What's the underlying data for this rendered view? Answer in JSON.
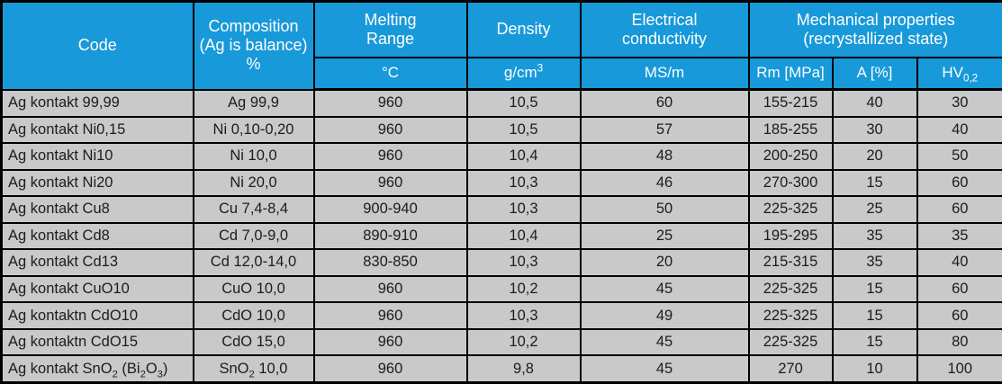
{
  "colors": {
    "header_bg": "#1899d9",
    "header_text": "#ffffff",
    "row_bg": "#c9c9c9",
    "body_text": "#1c1c1c",
    "border": "#000000"
  },
  "table": {
    "header": {
      "code": "Code",
      "composition": "Composition<br>(Ag is balance)<br>%",
      "melting_range": "Melting<br>Range",
      "melting_unit": "°C",
      "density": "Density",
      "density_unit": "g/cm<sup>3</sup>",
      "conductivity": "Electrical<br>conductivity",
      "conductivity_unit": "MS/m",
      "mechanical": "Mechanical properties<br>(recrystallized state)",
      "rm": "Rm [MPa]",
      "a": "A  [%]",
      "hv": "HV<sub>0,2</sub>"
    },
    "rows": [
      [
        "Ag kontakt 99,99",
        "Ag 99,9",
        "960",
        "10,5",
        "60",
        "155-215",
        "40",
        "30"
      ],
      [
        "Ag kontakt Ni0,15",
        "Ni 0,10-0,20",
        "960",
        "10,5",
        "57",
        "185-255",
        "30",
        "40"
      ],
      [
        "Ag kontakt Ni10",
        "Ni 10,0",
        "960",
        "10,4",
        "48",
        "200-250",
        "20",
        "50"
      ],
      [
        "Ag kontakt Ni20",
        "Ni 20,0",
        "960",
        "10,3",
        "46",
        "270-300",
        "15",
        "60"
      ],
      [
        "Ag kontakt Cu8",
        "Cu 7,4-8,4",
        "900-940",
        "10,3",
        "50",
        "225-325",
        "25",
        "60"
      ],
      [
        "Ag kontakt Cd8",
        "Cd 7,0-9,0",
        "890-910",
        "10,4",
        "25",
        "195-295",
        "35",
        "35"
      ],
      [
        "Ag kontakt Cd13",
        "Cd 12,0-14,0",
        "830-850",
        "10,3",
        "20",
        "215-315",
        "35",
        "40"
      ],
      [
        "Ag kontakt CuO10",
        "CuO 10,0",
        "960",
        "10,2",
        "45",
        "225-325",
        "15",
        "60"
      ],
      [
        "Ag kontaktn CdO10",
        "CdO 10,0",
        "960",
        "10,3",
        "49",
        "225-325",
        "15",
        "60"
      ],
      [
        "Ag kontaktn CdO15",
        "CdO 15,0",
        "960",
        "10,2",
        "45",
        "225-325",
        "15",
        "80"
      ],
      [
        "Ag kontakt SnO<sub>2</sub> (Bi<sub>2</sub>O<sub>3</sub>)",
        "SnO<sub>2</sub> 10,0",
        "960",
        "9,8",
        "45",
        "270",
        "10",
        "100"
      ]
    ]
  }
}
